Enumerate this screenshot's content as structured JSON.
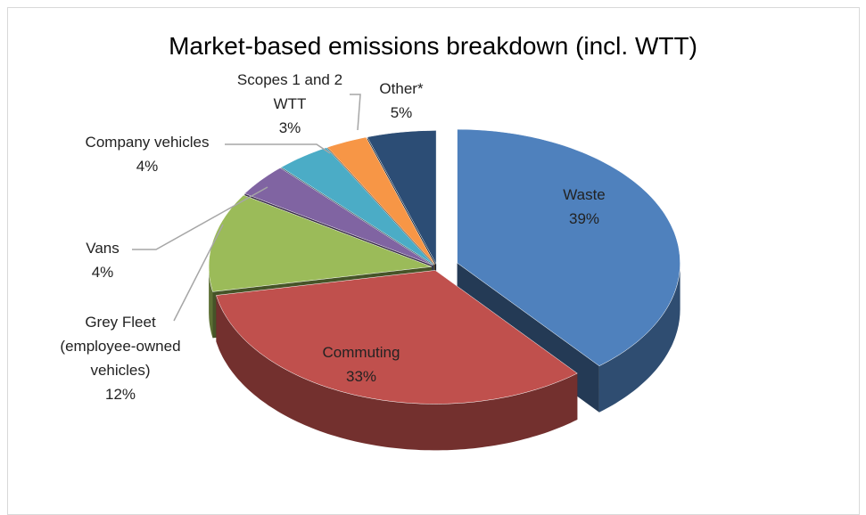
{
  "chart_data": {
    "type": "pie",
    "title": "Market-based emissions breakdown (incl. WTT)",
    "categories": [
      "Waste",
      "Commuting",
      "Grey Fleet (employee-owned vehicles)",
      "Vans",
      "Company vehicles",
      "Scopes 1 and 2 WTT",
      "Other*"
    ],
    "values": [
      39,
      33,
      12,
      4,
      4,
      3,
      5
    ],
    "value_labels": [
      "39%",
      "33%",
      "12%",
      "4%",
      "4%",
      "3%",
      "5%"
    ],
    "colors": [
      "#4f81bd",
      "#c0504d",
      "#9bbb59",
      "#8064a2",
      "#4bacc6",
      "#f79646",
      "#2c4d75"
    ]
  }
}
